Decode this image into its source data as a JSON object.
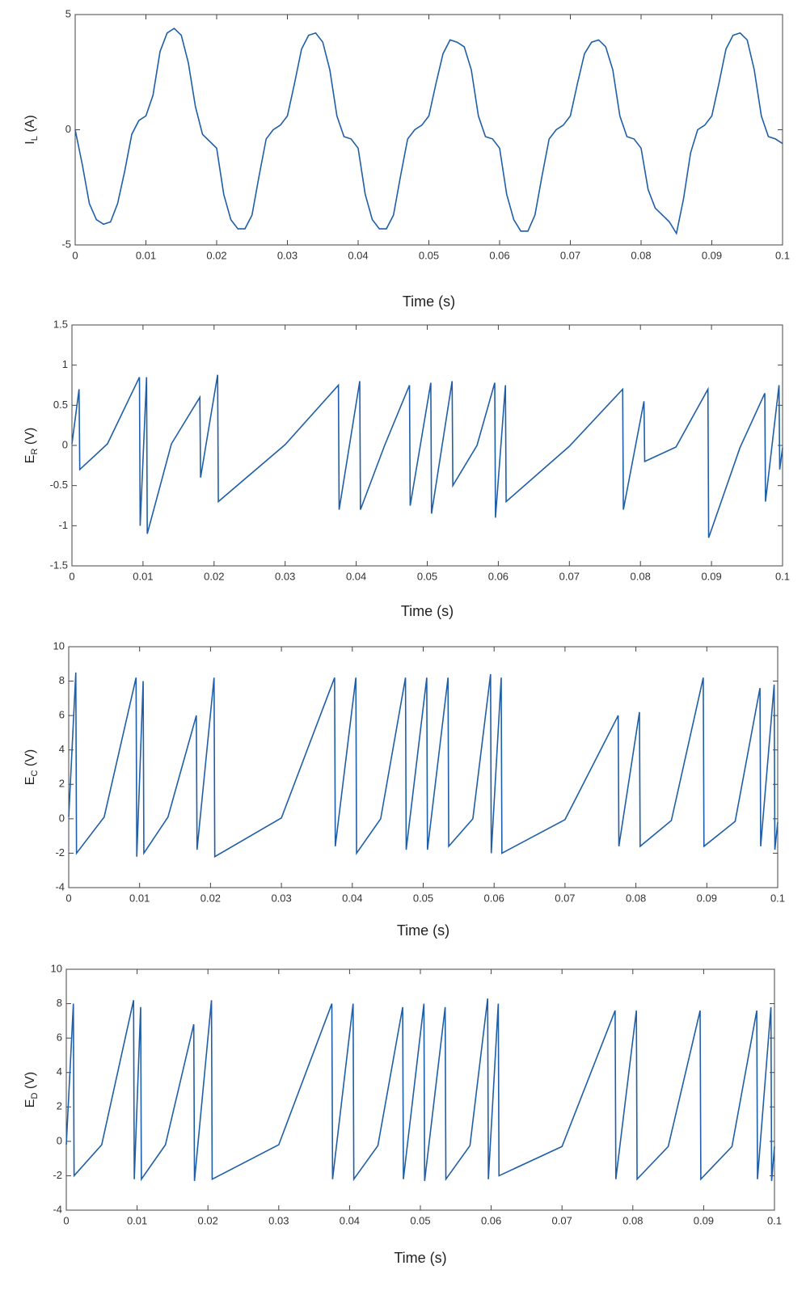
{
  "chart_data": [
    {
      "type": "line",
      "ylabel": [
        "I",
        "L",
        " (A)"
      ],
      "xlabel": "Time (s)",
      "xlim": [
        0,
        0.1
      ],
      "xticks": [
        0,
        0.01,
        0.02,
        0.03,
        0.04,
        0.05,
        0.06,
        0.07,
        0.08,
        0.09,
        0.1
      ],
      "ylim": [
        -5,
        5
      ],
      "yticks": [
        -5,
        0,
        5
      ],
      "x": [
        0,
        0.001,
        0.002,
        0.003,
        0.004,
        0.005,
        0.006,
        0.007,
        0.008,
        0.009,
        0.01,
        0.011,
        0.012,
        0.013,
        0.014,
        0.015,
        0.016,
        0.017,
        0.018,
        0.019,
        0.02,
        0.021,
        0.022,
        0.023,
        0.024,
        0.025,
        0.026,
        0.027,
        0.028,
        0.029,
        0.03,
        0.031,
        0.032,
        0.033,
        0.034,
        0.035,
        0.036,
        0.037,
        0.038,
        0.039,
        0.04,
        0.041,
        0.042,
        0.043,
        0.044,
        0.045,
        0.046,
        0.047,
        0.048,
        0.049,
        0.05,
        0.051,
        0.052,
        0.053,
        0.054,
        0.055,
        0.056,
        0.057,
        0.058,
        0.059,
        0.06,
        0.061,
        0.062,
        0.063,
        0.064,
        0.065,
        0.066,
        0.067,
        0.068,
        0.069,
        0.07,
        0.071,
        0.072,
        0.073,
        0.074,
        0.075,
        0.076,
        0.077,
        0.078,
        0.079,
        0.08,
        0.081,
        0.082,
        0.083,
        0.084,
        0.085,
        0.086,
        0.087,
        0.088,
        0.089,
        0.09,
        0.091,
        0.092,
        0.093,
        0.094,
        0.095,
        0.096,
        0.097,
        0.098,
        0.099,
        0.1
      ],
      "series": [
        {
          "color": "#1f5fa8",
          "values": [
            0,
            -1.5,
            -3.2,
            -3.9,
            -4.1,
            -4.0,
            -3.2,
            -1.8,
            -0.2,
            0.4,
            0.6,
            1.5,
            3.4,
            4.2,
            4.4,
            4.1,
            2.9,
            1.0,
            -0.2,
            -0.5,
            -0.8,
            -2.8,
            -3.9,
            -4.3,
            -4.3,
            -3.7,
            -2.0,
            -0.4,
            0.0,
            0.2,
            0.6,
            2.0,
            3.5,
            4.1,
            4.2,
            3.8,
            2.6,
            0.6,
            -0.3,
            -0.4,
            -0.8,
            -2.8,
            -3.9,
            -4.3,
            -4.3,
            -3.7,
            -2.0,
            -0.4,
            0.0,
            0.2,
            0.6,
            2.0,
            3.3,
            3.9,
            3.8,
            3.6,
            2.6,
            0.6,
            -0.3,
            -0.4,
            -0.8,
            -2.8,
            -3.9,
            -4.4,
            -4.4,
            -3.7,
            -2.0,
            -0.4,
            0.0,
            0.2,
            0.6,
            2.0,
            3.3,
            3.8,
            3.9,
            3.6,
            2.6,
            0.6,
            -0.3,
            -0.4,
            -0.8,
            -2.6,
            -3.4,
            -3.7,
            -4.0,
            -4.5,
            -3.0,
            -1.0,
            0.0,
            0.2,
            0.6,
            2.0,
            3.5,
            4.1,
            4.2,
            3.9,
            2.6,
            0.6,
            -0.3,
            -0.4,
            -0.6
          ]
        }
      ]
    },
    {
      "type": "line",
      "ylabel": [
        "E",
        "R",
        " (V)"
      ],
      "xlabel": "Time (s)",
      "xlim": [
        0,
        0.1
      ],
      "xticks": [
        0,
        0.01,
        0.02,
        0.03,
        0.04,
        0.05,
        0.06,
        0.07,
        0.08,
        0.09,
        0.1
      ],
      "ylim": [
        -1.5,
        1.5
      ],
      "yticks": [
        -1.5,
        -1,
        -0.5,
        0,
        0.5,
        1,
        1.5
      ],
      "x": [
        0,
        0.001,
        0.0011,
        0.005,
        0.0095,
        0.0096,
        0.0105,
        0.0106,
        0.014,
        0.018,
        0.0181,
        0.0205,
        0.0206,
        0.03,
        0.0375,
        0.0376,
        0.0405,
        0.0406,
        0.044,
        0.0475,
        0.0476,
        0.0505,
        0.0506,
        0.0535,
        0.0536,
        0.057,
        0.0595,
        0.0596,
        0.061,
        0.0611,
        0.07,
        0.0775,
        0.0776,
        0.0805,
        0.0806,
        0.085,
        0.0895,
        0.0896,
        0.094,
        0.0975,
        0.0976,
        0.0995,
        0.0996,
        0.1
      ],
      "series": [
        {
          "color": "#1f5fa8",
          "values": [
            0.02,
            0.7,
            -0.3,
            0.02,
            0.85,
            -1.0,
            0.85,
            -1.1,
            0.02,
            0.6,
            -0.4,
            0.88,
            -0.7,
            0.01,
            0.75,
            -0.8,
            0.8,
            -0.8,
            0.0,
            0.75,
            -0.75,
            0.78,
            -0.85,
            0.8,
            -0.5,
            0.0,
            0.78,
            -0.9,
            0.75,
            -0.7,
            -0.01,
            0.7,
            -0.8,
            0.55,
            -0.2,
            -0.02,
            0.7,
            -1.15,
            -0.03,
            0.65,
            -0.7,
            0.75,
            -0.3,
            -0.03
          ]
        }
      ]
    },
    {
      "type": "line",
      "ylabel": [
        "E",
        "C",
        " (V)"
      ],
      "xlabel": "Time (s)",
      "xlim": [
        0,
        0.1
      ],
      "xticks": [
        0,
        0.01,
        0.02,
        0.03,
        0.04,
        0.05,
        0.06,
        0.07,
        0.08,
        0.09,
        0.1
      ],
      "ylim": [
        -4,
        10
      ],
      "yticks": [
        -4,
        -2,
        0,
        2,
        4,
        6,
        8,
        10
      ],
      "x": [
        0,
        0.001,
        0.0011,
        0.005,
        0.0095,
        0.0096,
        0.0105,
        0.0106,
        0.014,
        0.018,
        0.0181,
        0.0205,
        0.0206,
        0.03,
        0.0375,
        0.0376,
        0.0405,
        0.0406,
        0.044,
        0.0475,
        0.0476,
        0.0505,
        0.0506,
        0.0535,
        0.0536,
        0.057,
        0.0595,
        0.0596,
        0.061,
        0.0611,
        0.07,
        0.0775,
        0.0776,
        0.0805,
        0.0806,
        0.085,
        0.0895,
        0.0896,
        0.094,
        0.0975,
        0.0976,
        0.0995,
        0.0996,
        0.1
      ],
      "series": [
        {
          "color": "#1f5fa8",
          "values": [
            0.1,
            8.5,
            -2.0,
            0.1,
            8.2,
            -2.2,
            8.0,
            -2.0,
            0.1,
            6.0,
            -1.8,
            8.2,
            -2.2,
            0.05,
            8.2,
            -1.6,
            8.2,
            -2.0,
            0.0,
            8.2,
            -1.8,
            8.2,
            -1.8,
            8.2,
            -1.6,
            0.0,
            8.4,
            -2.0,
            8.2,
            -2.0,
            -0.05,
            6.0,
            -1.6,
            6.2,
            -1.6,
            -0.1,
            8.2,
            -1.6,
            -0.15,
            7.6,
            -1.6,
            7.8,
            -1.8,
            -0.2
          ]
        }
      ]
    },
    {
      "type": "line",
      "ylabel": [
        "E",
        "D",
        " (V)"
      ],
      "xlabel": "Time (s)",
      "xlim": [
        0,
        0.1
      ],
      "xticks": [
        0,
        0.01,
        0.02,
        0.03,
        0.04,
        0.05,
        0.06,
        0.07,
        0.08,
        0.09,
        0.1
      ],
      "ylim": [
        -4,
        10
      ],
      "yticks": [
        -4,
        -2,
        0,
        2,
        4,
        6,
        8,
        10
      ],
      "x": [
        0,
        0.001,
        0.0011,
        0.005,
        0.0095,
        0.0096,
        0.0105,
        0.0106,
        0.014,
        0.018,
        0.0181,
        0.0205,
        0.0206,
        0.03,
        0.0375,
        0.0376,
        0.0405,
        0.0406,
        0.044,
        0.0475,
        0.0476,
        0.0505,
        0.0506,
        0.0535,
        0.0536,
        0.057,
        0.0595,
        0.0596,
        0.061,
        0.0611,
        0.07,
        0.0775,
        0.0776,
        0.0805,
        0.0806,
        0.085,
        0.0895,
        0.0896,
        0.094,
        0.0975,
        0.0976,
        0.0995,
        0.0996,
        0.1
      ],
      "series": [
        {
          "color": "#1f5fa8",
          "values": [
            -0.2,
            8.0,
            -2.0,
            -0.2,
            8.2,
            -2.2,
            7.8,
            -2.2,
            -0.2,
            6.8,
            -2.3,
            8.2,
            -2.2,
            -0.2,
            8.0,
            -2.2,
            8.0,
            -2.2,
            -0.25,
            7.8,
            -2.2,
            8.0,
            -2.3,
            7.8,
            -2.2,
            -0.25,
            8.3,
            -2.2,
            8.0,
            -2.0,
            -0.3,
            7.6,
            -2.2,
            7.6,
            -2.2,
            -0.3,
            7.6,
            -2.2,
            -0.3,
            7.6,
            -2.2,
            7.8,
            -2.3,
            -0.3
          ]
        }
      ]
    }
  ]
}
